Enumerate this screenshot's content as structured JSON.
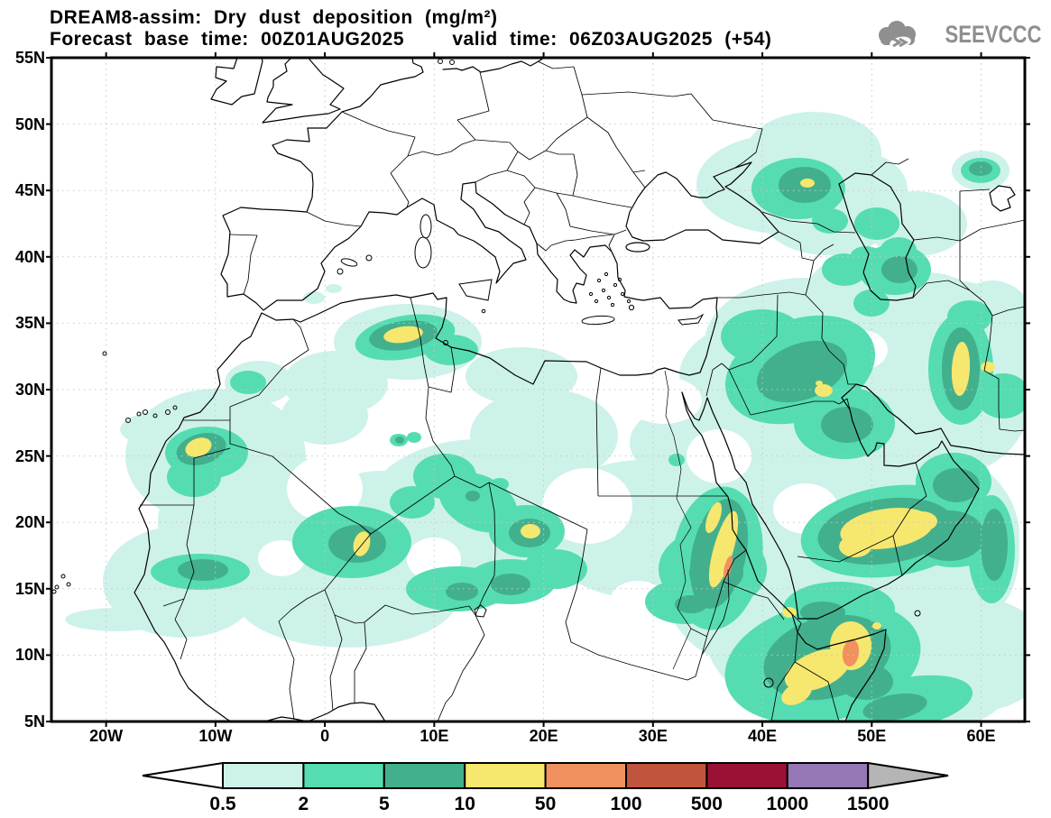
{
  "header": {
    "title_line1": "DREAM8-assim: Dry dust deposition (mg/m²)",
    "title_line2": "Forecast base time: 00Z01AUG2025    valid time: 06Z03AUG2025 (+54)"
  },
  "logo": {
    "text": "SEEVCCC",
    "icon": "cloud-logo-icon",
    "color": "#8f8f8f"
  },
  "axes": {
    "lat_labels": [
      "55N",
      "50N",
      "45N",
      "40N",
      "35N",
      "30N",
      "25N",
      "20N",
      "15N",
      "10N",
      "5N"
    ],
    "lon_labels": [
      "20W",
      "10W",
      "0",
      "10E",
      "20E",
      "30E",
      "40E",
      "50E",
      "60E"
    ]
  },
  "legend": {
    "boundary_labels": [
      "0.5",
      "2",
      "5",
      "10",
      "50",
      "100",
      "500",
      "1000",
      "1500"
    ],
    "segment_colors": [
      "#cdf2e9",
      "#55dcb2",
      "#42b08d",
      "#f6e76f",
      "#f0915f",
      "#c0543c",
      "#9b1135",
      "#9677b5"
    ],
    "below_min_color": "#ffffff",
    "above_max_color": "#b5b5b5",
    "outline_color": "#000000"
  },
  "map_overlay_levels": [
    {
      "range": "0.5-2",
      "color": "#cdf2e9"
    },
    {
      "range": "2-5",
      "color": "#55dcb2"
    },
    {
      "range": "5-10",
      "color": "#42b08d"
    },
    {
      "range": "10-50",
      "color": "#f6e76f"
    },
    {
      "range": "50-100",
      "color": "#f0915f"
    }
  ],
  "grid": {
    "color": "#c8c8c8"
  }
}
